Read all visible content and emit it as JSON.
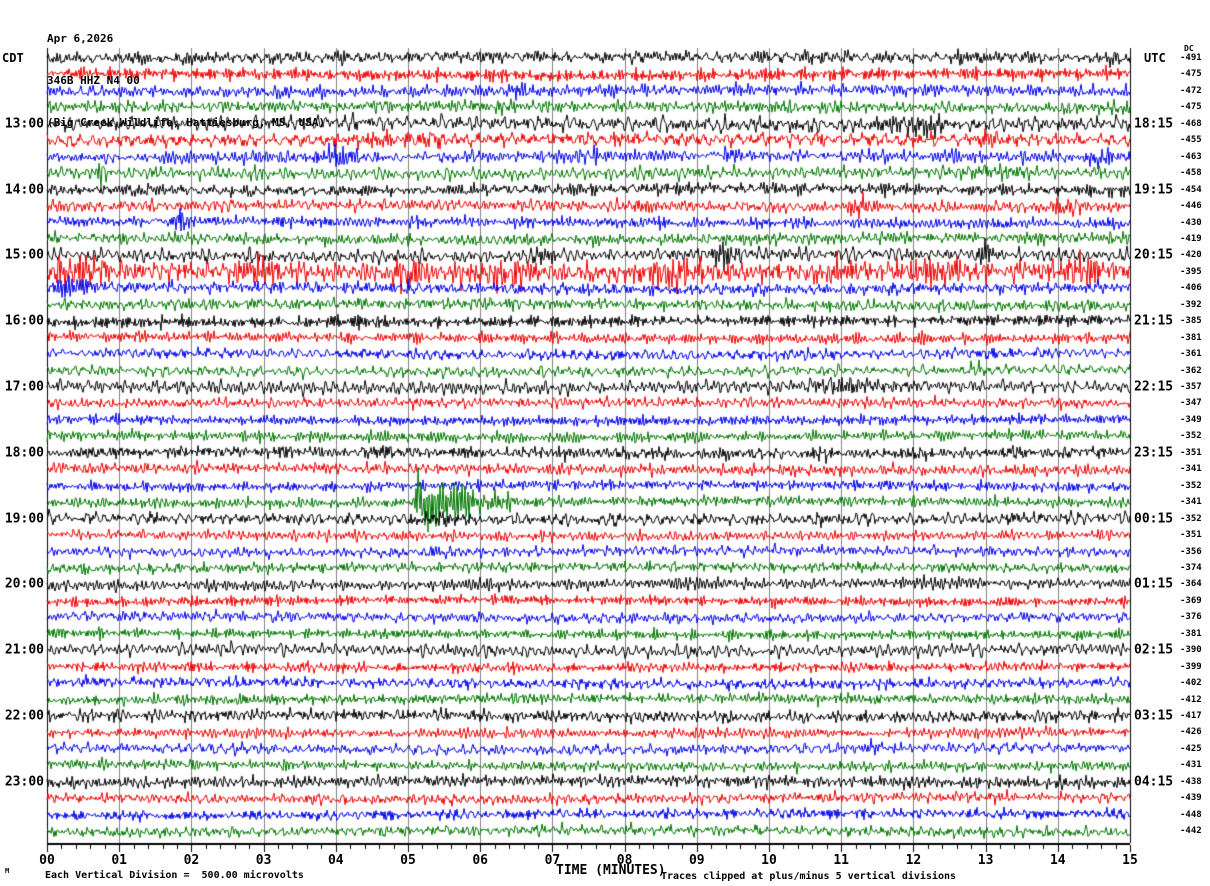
{
  "header": {
    "date": "Apr 6,2026",
    "station": "346B HHZ N4 00",
    "location": "(Big Creek Wildlife, Hattiesburg, MS, USA)"
  },
  "axes": {
    "left_tz": "CDT",
    "right_tz": "UTC",
    "dc_header": "DC",
    "x_title": "TIME (MINUTES)",
    "x_tick_labels": [
      "00",
      "01",
      "02",
      "03",
      "04",
      "05",
      "06",
      "07",
      "08",
      "09",
      "10",
      "11",
      "12",
      "13",
      "14",
      "15"
    ]
  },
  "footer": {
    "left": "Each Vertical Division =  500.00 microvolts",
    "right": "Traces clipped at plus/minus 5 vertical divisions",
    "corner_mark": "M"
  },
  "chart_data": {
    "type": "line",
    "x_unit": "minutes",
    "x_range": [
      0,
      15
    ],
    "minutes_per_row": 15,
    "clip_divisions": 5,
    "grid": true,
    "grid_color": "#808080",
    "trace_colors": {
      "black": "#000000",
      "red": "#ee0000",
      "blue": "#0000ee",
      "green": "#007700"
    },
    "rows": [
      {
        "cdt": "",
        "utc": "",
        "dc": "-491",
        "color": "black",
        "amp": 4.2,
        "events": []
      },
      {
        "cdt": "",
        "utc": "",
        "dc": "-475",
        "color": "red",
        "amp": 4.2,
        "events": []
      },
      {
        "cdt": "",
        "utc": "",
        "dc": "-472",
        "color": "blue",
        "amp": 4.0,
        "events": [
          {
            "t": 6.6,
            "a": 7,
            "w": 0.15
          },
          {
            "t": 7.6,
            "a": 6,
            "w": 0.12
          }
        ]
      },
      {
        "cdt": "",
        "utc": "",
        "dc": "-475",
        "color": "green",
        "amp": 4.0,
        "events": []
      },
      {
        "cdt": "13:00",
        "utc": "18:15",
        "dc": "-468",
        "color": "black",
        "amp": 4.8,
        "events": [
          {
            "t": 11.6,
            "a": 9,
            "w": 0.35
          },
          {
            "t": 12.2,
            "a": 7,
            "w": 0.25
          }
        ]
      },
      {
        "cdt": "",
        "utc": "",
        "dc": "-455",
        "color": "red",
        "amp": 4.4,
        "events": [
          {
            "t": 4.6,
            "a": 8,
            "w": 0.45
          },
          {
            "t": 5.35,
            "a": 7,
            "w": 0.15
          },
          {
            "t": 8.0,
            "a": 7,
            "w": 0.2
          },
          {
            "t": 13.1,
            "a": 8,
            "w": 0.25
          }
        ]
      },
      {
        "cdt": "",
        "utc": "",
        "dc": "-463",
        "color": "blue",
        "amp": 4.2,
        "events": [
          {
            "t": 4.0,
            "a": 9,
            "w": 0.3
          },
          {
            "t": 5.6,
            "a": 7,
            "w": 0.15
          },
          {
            "t": 7.6,
            "a": 7,
            "w": 0.15
          },
          {
            "t": 9.5,
            "a": 6,
            "w": 0.15
          },
          {
            "t": 14.6,
            "a": 10,
            "w": 0.25
          }
        ]
      },
      {
        "cdt": "",
        "utc": "",
        "dc": "-458",
        "color": "green",
        "amp": 4.0,
        "events": [
          {
            "t": 0.75,
            "a": 11,
            "w": 0.05
          },
          {
            "t": 2.85,
            "a": 9,
            "w": 0.05
          },
          {
            "t": 13.3,
            "a": 5,
            "w": 0.8
          }
        ]
      },
      {
        "cdt": "14:00",
        "utc": "19:15",
        "dc": "-454",
        "color": "black",
        "amp": 4.0,
        "events": []
      },
      {
        "cdt": "",
        "utc": "",
        "dc": "-446",
        "color": "red",
        "amp": 4.0,
        "events": [
          {
            "t": 8.2,
            "a": 7,
            "w": 0.15
          },
          {
            "t": 11.3,
            "a": 10,
            "w": 0.2
          },
          {
            "t": 14.1,
            "a": 12,
            "w": 0.15
          }
        ]
      },
      {
        "cdt": "",
        "utc": "",
        "dc": "-430",
        "color": "blue",
        "amp": 3.8,
        "events": [
          {
            "t": 1.85,
            "a": 8,
            "w": 0.1
          }
        ]
      },
      {
        "cdt": "",
        "utc": "",
        "dc": "-419",
        "color": "green",
        "amp": 3.8,
        "events": [
          {
            "t": 10.15,
            "a": 8,
            "w": 0.07
          }
        ]
      },
      {
        "cdt": "15:00",
        "utc": "20:15",
        "dc": "-420",
        "color": "black",
        "amp": 4.4,
        "events": [
          {
            "t": 6.9,
            "a": 7,
            "w": 0.2
          },
          {
            "t": 9.35,
            "a": 14,
            "w": 0.15
          },
          {
            "t": 13.0,
            "a": 16,
            "w": 0.1
          }
        ]
      },
      {
        "cdt": "",
        "utc": "",
        "dc": "-395",
        "color": "red",
        "amp": 6.5,
        "events": [
          {
            "t": 0.5,
            "a": 14,
            "w": 0.5
          },
          {
            "t": 3.0,
            "a": 13,
            "w": 0.4
          },
          {
            "t": 5.0,
            "a": 12,
            "w": 0.3
          },
          {
            "t": 6.3,
            "a": 13,
            "w": 0.5
          },
          {
            "t": 8.7,
            "a": 13,
            "w": 0.6
          },
          {
            "t": 10.9,
            "a": 10,
            "w": 0.4
          },
          {
            "t": 12.4,
            "a": 12,
            "w": 0.5
          },
          {
            "t": 14.4,
            "a": 11,
            "w": 0.4
          }
        ]
      },
      {
        "cdt": "",
        "utc": "",
        "dc": "-406",
        "color": "blue",
        "amp": 4.0,
        "events": [
          {
            "t": 0.45,
            "a": 10,
            "w": 0.35
          }
        ]
      },
      {
        "cdt": "",
        "utc": "",
        "dc": "-392",
        "color": "green",
        "amp": 3.8,
        "events": []
      },
      {
        "cdt": "16:00",
        "utc": "21:15",
        "dc": "-385",
        "color": "black",
        "amp": 4.0,
        "events": []
      },
      {
        "cdt": "",
        "utc": "",
        "dc": "-381",
        "color": "red",
        "amp": 3.6,
        "events": []
      },
      {
        "cdt": "",
        "utc": "",
        "dc": "-361",
        "color": "blue",
        "amp": 3.5,
        "events": []
      },
      {
        "cdt": "",
        "utc": "",
        "dc": "-362",
        "color": "green",
        "amp": 3.6,
        "events": [
          {
            "t": 12.85,
            "a": 6,
            "w": 0.1
          }
        ]
      },
      {
        "cdt": "17:00",
        "utc": "22:15",
        "dc": "-357",
        "color": "black",
        "amp": 4.0,
        "events": [
          {
            "t": 11.2,
            "a": 6,
            "w": 0.6
          }
        ]
      },
      {
        "cdt": "",
        "utc": "",
        "dc": "-347",
        "color": "red",
        "amp": 3.5,
        "events": []
      },
      {
        "cdt": "",
        "utc": "",
        "dc": "-349",
        "color": "blue",
        "amp": 3.4,
        "events": []
      },
      {
        "cdt": "",
        "utc": "",
        "dc": "-352",
        "color": "green",
        "amp": 3.5,
        "events": [
          {
            "t": 5.2,
            "a": 5,
            "w": 0.15
          }
        ]
      },
      {
        "cdt": "18:00",
        "utc": "23:15",
        "dc": "-351",
        "color": "black",
        "amp": 4.0,
        "events": []
      },
      {
        "cdt": "",
        "utc": "",
        "dc": "-341",
        "color": "red",
        "amp": 3.8,
        "events": []
      },
      {
        "cdt": "",
        "utc": "",
        "dc": "-352",
        "color": "blue",
        "amp": 3.4,
        "events": []
      },
      {
        "cdt": "",
        "utc": "",
        "dc": "-341",
        "color": "green",
        "amp": 3.5,
        "events": [
          {
            "t": 5.15,
            "a": 38,
            "w": 0.05,
            "d": 0.5
          },
          {
            "t": 5.85,
            "a": 9,
            "w": 0.15,
            "d": 0.3
          }
        ]
      },
      {
        "cdt": "19:00",
        "utc": "00:15",
        "dc": "-352",
        "color": "black",
        "amp": 4.0,
        "events": [
          {
            "t": 5.45,
            "a": 5,
            "w": 0.25
          },
          {
            "t": 10.9,
            "a": 5,
            "w": 0.3
          }
        ]
      },
      {
        "cdt": "",
        "utc": "",
        "dc": "-351",
        "color": "red",
        "amp": 3.4,
        "events": []
      },
      {
        "cdt": "",
        "utc": "",
        "dc": "-356",
        "color": "blue",
        "amp": 3.4,
        "events": [
          {
            "t": 5.35,
            "a": 6,
            "w": 0.12
          }
        ]
      },
      {
        "cdt": "",
        "utc": "",
        "dc": "-374",
        "color": "green",
        "amp": 3.4,
        "events": []
      },
      {
        "cdt": "20:00",
        "utc": "01:15",
        "dc": "-364",
        "color": "black",
        "amp": 4.0,
        "events": []
      },
      {
        "cdt": "",
        "utc": "",
        "dc": "-369",
        "color": "red",
        "amp": 3.4,
        "events": []
      },
      {
        "cdt": "",
        "utc": "",
        "dc": "-376",
        "color": "blue",
        "amp": 3.4,
        "events": []
      },
      {
        "cdt": "",
        "utc": "",
        "dc": "-381",
        "color": "green",
        "amp": 3.4,
        "events": []
      },
      {
        "cdt": "21:00",
        "utc": "02:15",
        "dc": "-390",
        "color": "black",
        "amp": 4.0,
        "events": []
      },
      {
        "cdt": "",
        "utc": "",
        "dc": "-399",
        "color": "red",
        "amp": 3.4,
        "events": []
      },
      {
        "cdt": "",
        "utc": "",
        "dc": "-402",
        "color": "blue",
        "amp": 3.4,
        "events": []
      },
      {
        "cdt": "",
        "utc": "",
        "dc": "-412",
        "color": "green",
        "amp": 3.5,
        "events": []
      },
      {
        "cdt": "22:00",
        "utc": "03:15",
        "dc": "-417",
        "color": "black",
        "amp": 4.0,
        "events": []
      },
      {
        "cdt": "",
        "utc": "",
        "dc": "-426",
        "color": "red",
        "amp": 3.4,
        "events": []
      },
      {
        "cdt": "",
        "utc": "",
        "dc": "-425",
        "color": "blue",
        "amp": 3.5,
        "events": [
          {
            "t": 11.5,
            "a": 6,
            "w": 0.2
          }
        ]
      },
      {
        "cdt": "",
        "utc": "",
        "dc": "-431",
        "color": "green",
        "amp": 3.4,
        "events": []
      },
      {
        "cdt": "23:00",
        "utc": "04:15",
        "dc": "-438",
        "color": "black",
        "amp": 4.0,
        "events": []
      },
      {
        "cdt": "",
        "utc": "",
        "dc": "-439",
        "color": "red",
        "amp": 3.4,
        "events": []
      },
      {
        "cdt": "",
        "utc": "",
        "dc": "-448",
        "color": "blue",
        "amp": 3.4,
        "events": []
      },
      {
        "cdt": "",
        "utc": "",
        "dc": "-442",
        "color": "green",
        "amp": 3.5,
        "events": []
      }
    ]
  }
}
